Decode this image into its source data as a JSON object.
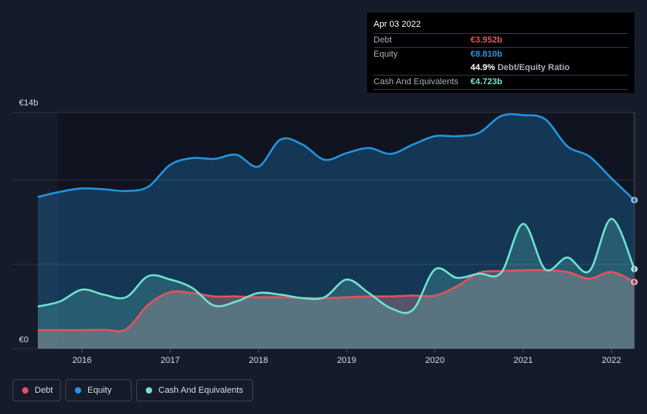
{
  "tooltip": {
    "date": "Apr 03 2022",
    "debt_label": "Debt",
    "debt_value": "€3.952b",
    "equity_label": "Equity",
    "equity_value": "€8.810b",
    "ratio_value": "44.9%",
    "ratio_label": "Debt/Equity Ratio",
    "cash_label": "Cash And Equivalents",
    "cash_value": "€4.723b"
  },
  "legend": {
    "debt": "Debt",
    "equity": "Equity",
    "cash": "Cash And Equivalents"
  },
  "colors": {
    "debt": "#e8505b",
    "equity": "#2394df",
    "cash": "#6ee3d1"
  },
  "chart_data": {
    "type": "area",
    "y_unit": "€b",
    "ylim": [
      0,
      14
    ],
    "y_tick_labels": [
      {
        "value": 0,
        "label": "€0"
      },
      {
        "value": 14,
        "label": "€14b"
      }
    ],
    "x_tick_labels": [
      {
        "value": 2016.0,
        "label": "2016"
      },
      {
        "value": 2017.0,
        "label": "2017"
      },
      {
        "value": 2018.0,
        "label": "2018"
      },
      {
        "value": 2019.0,
        "label": "2019"
      },
      {
        "value": 2020.0,
        "label": "2020"
      },
      {
        "value": 2021.0,
        "label": "2021"
      },
      {
        "value": 2022.0,
        "label": "2022"
      }
    ],
    "xlim": [
      2015.5,
      2022.26
    ],
    "gridlines_y": [
      0,
      5,
      10,
      14
    ],
    "series": [
      {
        "name": "Equity",
        "key": "equity",
        "x": [
          2015.5,
          2015.75,
          2016.0,
          2016.25,
          2016.5,
          2016.75,
          2017.0,
          2017.25,
          2017.5,
          2017.75,
          2018.0,
          2018.25,
          2018.5,
          2018.75,
          2019.0,
          2019.25,
          2019.5,
          2019.75,
          2020.0,
          2020.25,
          2020.5,
          2020.75,
          2021.0,
          2021.25,
          2021.5,
          2021.75,
          2022.0,
          2022.26
        ],
        "y": [
          9.0,
          9.3,
          9.5,
          9.45,
          9.35,
          9.6,
          10.9,
          11.3,
          11.25,
          11.5,
          10.8,
          12.4,
          12.1,
          11.2,
          11.6,
          11.9,
          11.55,
          12.1,
          12.6,
          12.6,
          12.8,
          13.8,
          13.85,
          13.6,
          12.0,
          11.4,
          10.1,
          8.81
        ]
      },
      {
        "name": "Debt",
        "key": "debt",
        "x": [
          2015.5,
          2015.75,
          2016.0,
          2016.25,
          2016.5,
          2016.75,
          2017.0,
          2017.25,
          2017.5,
          2017.75,
          2018.0,
          2018.25,
          2018.5,
          2018.75,
          2019.0,
          2019.25,
          2019.5,
          2019.75,
          2020.0,
          2020.25,
          2020.5,
          2020.75,
          2021.0,
          2021.25,
          2021.5,
          2021.75,
          2022.0,
          2022.26
        ],
        "y": [
          1.1,
          1.1,
          1.1,
          1.12,
          1.15,
          2.6,
          3.35,
          3.3,
          3.1,
          3.1,
          3.05,
          3.05,
          3.0,
          3.0,
          3.05,
          3.1,
          3.1,
          3.15,
          3.15,
          3.7,
          4.5,
          4.6,
          4.65,
          4.65,
          4.55,
          4.15,
          4.55,
          3.952
        ]
      },
      {
        "name": "Cash And Equivalents",
        "key": "cash",
        "x": [
          2015.5,
          2015.75,
          2016.0,
          2016.25,
          2016.5,
          2016.75,
          2017.0,
          2017.25,
          2017.5,
          2017.75,
          2018.0,
          2018.25,
          2018.5,
          2018.75,
          2019.0,
          2019.25,
          2019.5,
          2019.75,
          2020.0,
          2020.25,
          2020.5,
          2020.75,
          2021.0,
          2021.25,
          2021.5,
          2021.75,
          2022.0,
          2022.26
        ],
        "y": [
          2.5,
          2.8,
          3.5,
          3.2,
          3.05,
          4.3,
          4.1,
          3.6,
          2.55,
          2.8,
          3.3,
          3.2,
          3.0,
          3.05,
          4.1,
          3.3,
          2.4,
          2.3,
          4.7,
          4.2,
          4.45,
          4.5,
          7.4,
          4.7,
          5.4,
          4.6,
          7.7,
          4.723
        ]
      }
    ]
  }
}
